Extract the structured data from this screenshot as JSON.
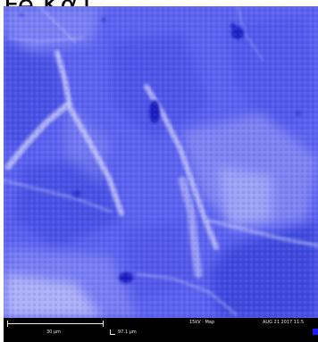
{
  "heading": {
    "text": "Fe Kα1"
  },
  "colors": {
    "base": "#5d63f0",
    "dark": "#1b1fc0",
    "light": "#c9ccf7",
    "bar_background": "#000000",
    "bar_text": "#e8e8e8",
    "swatch": "#1a1aff"
  },
  "databar": {
    "scale_label": "30 µm",
    "hfw_label": "97.1 µm",
    "voltage_mode": "15kV · Map",
    "timestamp": "AUG 21 2017 11:5"
  }
}
